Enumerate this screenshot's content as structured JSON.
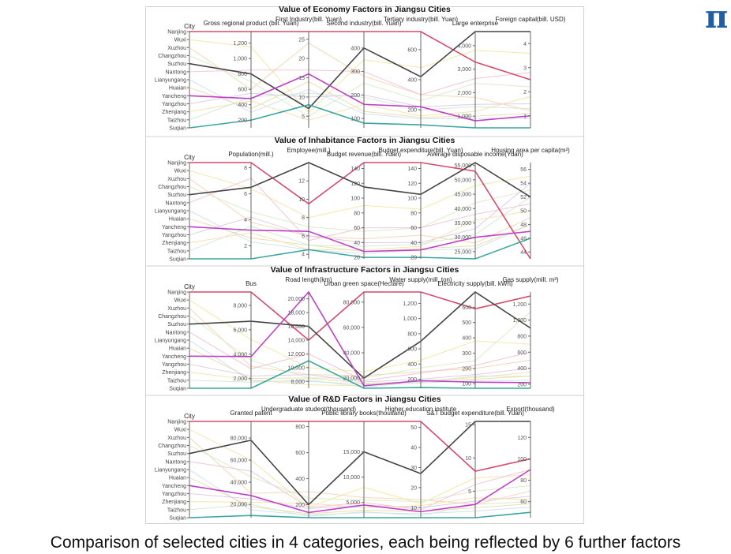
{
  "caption": "Comparison of selected cities in 4 categories, each being reflected by 6 further factors",
  "logo_text": "π",
  "colors": {
    "Nanjing": "#d64a6a",
    "Suzhou": "#444444",
    "Yancheng": "#c040c8",
    "Suqian": "#3aa6a0",
    "others": [
      "#f2e7a0",
      "#f5d3b0",
      "#d6ecc4",
      "#f0c0d0",
      "#c8e0f0",
      "#e8dca8",
      "#d8c8e8",
      "#f6e0a8",
      "#cfe8d0"
    ]
  },
  "chart_data": [
    {
      "type": "parallel_coordinates",
      "title": "Value of Economy Factors in Jiangsu Cities",
      "cities": [
        "Nanjing",
        "Wuxi",
        "Xuzhou",
        "Changzhou",
        "Suzhou",
        "Nantong",
        "Lianyungang",
        "Huaian",
        "Yancheng",
        "Yangzhou",
        "Zhenjiang",
        "Taizhou",
        "Suqian"
      ],
      "axes": [
        {
          "label": "Gross regional product (bill. Yuan)",
          "ticks": [
            "1,200",
            "1,000",
            "800",
            "600",
            "400",
            "200"
          ],
          "range": [
            100,
            1350
          ]
        },
        {
          "label": "First Industry(bill. Yuan)",
          "ticks": [
            "25",
            "20",
            "15",
            "10",
            "5"
          ],
          "range": [
            2,
            27
          ]
        },
        {
          "label": "Second industry(bill. Yuan)",
          "ticks": [
            "400",
            "300",
            "200",
            "100"
          ],
          "range": [
            60,
            470
          ]
        },
        {
          "label": "Tertiary industry(bill. Yuan)",
          "ticks": [
            "600",
            "400",
            "200"
          ],
          "range": [
            80,
            720
          ]
        },
        {
          "label": "Large enterprise",
          "ticks": [
            "4,000",
            "3,000",
            "2,000",
            "1,000"
          ],
          "range": [
            500,
            4600
          ]
        },
        {
          "label": "Foreign capital(bill. USD)",
          "ticks": [
            "4",
            "3",
            "2",
            "1"
          ],
          "range": [
            0.5,
            4.5
          ]
        }
      ],
      "highlight": [
        {
          "city": "Nanjing",
          "values": [
            1350,
            27,
            470,
            720,
            3300,
            2.5
          ]
        },
        {
          "city": "Suzhou",
          "values": [
            800,
            7,
            400,
            420,
            4600,
            4.5
          ]
        },
        {
          "city": "Yancheng",
          "values": [
            480,
            16,
            160,
            220,
            800,
            1.0
          ]
        },
        {
          "city": "Suqian",
          "values": [
            200,
            8,
            80,
            100,
            500,
            0.5
          ]
        }
      ],
      "background": [
        {
          "city": "Wuxi",
          "values": [
            1150,
            6,
            350,
            480,
            3800,
            3.6
          ]
        },
        {
          "city": "Xuzhou",
          "values": [
            600,
            24,
            280,
            300,
            1800,
            1.2
          ]
        },
        {
          "city": "Changzhou",
          "values": [
            700,
            5,
            250,
            260,
            2400,
            2.2
          ]
        },
        {
          "city": "Nantong",
          "values": [
            850,
            17,
            300,
            300,
            2600,
            2.8
          ]
        },
        {
          "city": "Lianyungang",
          "values": [
            300,
            12,
            120,
            140,
            900,
            0.9
          ]
        },
        {
          "city": "Huaian",
          "values": [
            350,
            14,
            130,
            150,
            1000,
            1.1
          ]
        },
        {
          "city": "Yangzhou",
          "values": [
            550,
            10,
            200,
            220,
            1500,
            1.5
          ]
        },
        {
          "city": "Zhenjiang",
          "values": [
            450,
            4,
            160,
            160,
            1200,
            1.8
          ]
        },
        {
          "city": "Taizhou",
          "values": [
            500,
            11,
            190,
            200,
            1400,
            1.3
          ]
        }
      ]
    },
    {
      "type": "parallel_coordinates",
      "title": "Value of Inhabitance Factors in Jiangsu Cities",
      "cities": [
        "Nanjing",
        "Wuxi",
        "Xuzhou",
        "Changzhou",
        "Suzhou",
        "Nantong",
        "Lianyungang",
        "Huaian",
        "Yancheng",
        "Yangzhou",
        "Zhenjiang",
        "Taizhou",
        "Suqian"
      ],
      "axes": [
        {
          "label": "Population(mill.)",
          "ticks": [
            "8",
            "6",
            "4",
            "2"
          ],
          "range": [
            1,
            8.4
          ]
        },
        {
          "label": "Employee(mill.)",
          "ticks": [
            "12",
            "10",
            "8",
            "6",
            "4"
          ],
          "range": [
            3.5,
            14
          ]
        },
        {
          "label": "Budget revenue(bill. Yuan)",
          "ticks": [
            "140",
            "120",
            "100",
            "80",
            "60",
            "40",
            "20"
          ],
          "range": [
            18,
            148
          ]
        },
        {
          "label": "Budget expenditure(bill. Yuan)",
          "ticks": [
            "140",
            "120",
            "100",
            "80",
            "60",
            "40",
            "20"
          ],
          "range": [
            18,
            148
          ]
        },
        {
          "label": "Average disposable income(Yuan)",
          "ticks": [
            "55,000",
            "50,000",
            "45,000",
            "40,000",
            "35,000",
            "30,000",
            "25,000"
          ],
          "range": [
            22500,
            56000
          ]
        },
        {
          "label": "Housing area per capita(m²)",
          "ticks": [
            "56",
            "54",
            "52",
            "50",
            "48",
            "46",
            "44"
          ],
          "range": [
            43,
            57
          ]
        }
      ],
      "highlight": [
        {
          "city": "Nanjing",
          "values": [
            8.4,
            9.5,
            148,
            148,
            53000,
            43
          ]
        },
        {
          "city": "Suzhou",
          "values": [
            6.5,
            14,
            115,
            105,
            56000,
            52
          ]
        },
        {
          "city": "Yancheng",
          "values": [
            3.2,
            6.5,
            28,
            30,
            30000,
            47
          ]
        },
        {
          "city": "Suqian",
          "values": [
            1.0,
            4.5,
            20,
            20,
            22500,
            46
          ]
        }
      ],
      "background": [
        {
          "city": "Wuxi",
          "values": [
            6.4,
            8.0,
            90,
            85,
            48000,
            55
          ]
        },
        {
          "city": "Xuzhou",
          "values": [
            3.8,
            6.0,
            45,
            50,
            28000,
            49
          ]
        },
        {
          "city": "Changzhou",
          "values": [
            4.6,
            7.0,
            55,
            60,
            42000,
            53
          ]
        },
        {
          "city": "Nantong",
          "values": [
            7.2,
            5.5,
            60,
            60,
            38000,
            51
          ]
        },
        {
          "city": "Lianyungang",
          "values": [
            2.3,
            4.5,
            25,
            30,
            26000,
            48
          ]
        },
        {
          "city": "Huaian",
          "values": [
            2.6,
            5.0,
            28,
            32,
            27000,
            48
          ]
        },
        {
          "city": "Yangzhou",
          "values": [
            4.2,
            6.0,
            40,
            40,
            33000,
            54
          ]
        },
        {
          "city": "Zhenjiang",
          "values": [
            3.0,
            4.5,
            30,
            35,
            36000,
            50
          ]
        },
        {
          "city": "Taizhou",
          "values": [
            3.5,
            5.0,
            35,
            38,
            31000,
            52
          ]
        }
      ]
    },
    {
      "type": "parallel_coordinates",
      "title": "Value of Infrastructure Factors in Jiangsu Cities",
      "cities": [
        "Nanjing",
        "Wuxi",
        "Xuzhou",
        "Changzhou",
        "Suzhou",
        "Nantong",
        "Lianyungang",
        "Huaian",
        "Yancheng",
        "Yangzhou",
        "Zhenjiang",
        "Taizhou",
        "Suqian"
      ],
      "axes": [
        {
          "label": "Bus",
          "ticks": [
            "8,000",
            "6,000",
            "4,000",
            "2,000"
          ],
          "range": [
            1200,
            9100
          ]
        },
        {
          "label": "Road length(km)",
          "ticks": [
            "20,000",
            "18,000",
            "16,000",
            "14,000",
            "12,000",
            "10,000",
            "8,000"
          ],
          "range": [
            7000,
            21000
          ]
        },
        {
          "label": "Urban green space(Hectare)",
          "ticks": [
            "80,000",
            "60,000",
            "40,000",
            "20,000"
          ],
          "range": [
            12000,
            88000
          ]
        },
        {
          "label": "Water supply(mill. ton)",
          "ticks": [
            "1,200",
            "1,000",
            "800",
            "600",
            "400",
            "200"
          ],
          "range": [
            80,
            1350
          ]
        },
        {
          "label": "Electricity supply(bill. kWh)",
          "ticks": [
            "600",
            "500",
            "400",
            "300",
            "200",
            "100"
          ],
          "range": [
            70,
            700
          ]
        },
        {
          "label": "Gas supply(mill. m³)",
          "ticks": [
            "1,200",
            "1,000",
            "800",
            "600",
            "400",
            "200"
          ],
          "range": [
            150,
            1350
          ]
        }
      ],
      "highlight": [
        {
          "city": "Nanjing",
          "values": [
            9100,
            14000,
            88000,
            1350,
            590,
            1300
          ]
        },
        {
          "city": "Suzhou",
          "values": [
            6700,
            16000,
            20000,
            700,
            700,
            900
          ]
        },
        {
          "city": "Yancheng",
          "values": [
            3800,
            21000,
            14000,
            180,
            110,
            220
          ]
        },
        {
          "city": "Suqian",
          "values": [
            1200,
            11000,
            12000,
            90,
            70,
            150
          ]
        }
      ],
      "background": [
        {
          "city": "Wuxi",
          "values": [
            5200,
            10000,
            25000,
            450,
            380,
            700
          ]
        },
        {
          "city": "Xuzhou",
          "values": [
            3000,
            9000,
            22000,
            300,
            200,
            500
          ]
        },
        {
          "city": "Changzhou",
          "values": [
            3500,
            8500,
            20000,
            350,
            250,
            1100
          ]
        },
        {
          "city": "Nantong",
          "values": [
            2800,
            12000,
            18000,
            280,
            220,
            600
          ]
        },
        {
          "city": "Lianyungang",
          "values": [
            1800,
            8000,
            15000,
            150,
            120,
            250
          ]
        },
        {
          "city": "Huaian",
          "values": [
            2000,
            8500,
            16000,
            170,
            130,
            300
          ]
        },
        {
          "city": "Yangzhou",
          "values": [
            2200,
            9000,
            17000,
            200,
            160,
            400
          ]
        },
        {
          "city": "Zhenjiang",
          "values": [
            1900,
            7500,
            14000,
            180,
            140,
            350
          ]
        },
        {
          "city": "Taizhou",
          "values": [
            1700,
            8200,
            13000,
            160,
            150,
            300
          ]
        }
      ]
    },
    {
      "type": "parallel_coordinates",
      "title": "Value of R&D Factors in Jiangsu Cities",
      "cities": [
        "Nanjing",
        "Wuxi",
        "Xuzhou",
        "Changzhou",
        "Suzhou",
        "Nantong",
        "Lianyungang",
        "Huaian",
        "Yancheng",
        "Yangzhou",
        "Zhenjiang",
        "Taizhou",
        "Suqian"
      ],
      "axes": [
        {
          "label": "Granted patent",
          "ticks": [
            "80,000",
            "60,000",
            "40,000",
            "20,000"
          ],
          "range": [
            8000,
            95000
          ]
        },
        {
          "label": "Undergraduate student(thousand)",
          "ticks": [
            "800",
            "600",
            "400",
            "200"
          ],
          "range": [
            100,
            840
          ]
        },
        {
          "label": "Public library books(thousand)",
          "ticks": [
            "15,000",
            "10,000",
            "5,000"
          ],
          "range": [
            2000,
            21000
          ]
        },
        {
          "label": "Higher education institute",
          "ticks": [
            "50",
            "40",
            "30",
            "20",
            "10"
          ],
          "range": [
            5,
            53
          ]
        },
        {
          "label": "S&T budget expenditure(bill. Yuan)",
          "ticks": [
            "15",
            "10",
            "5"
          ],
          "range": [
            1,
            15.5
          ]
        },
        {
          "label": "Export(thousand)",
          "ticks": [
            "120",
            "100",
            "80",
            "60"
          ],
          "range": [
            45,
            135
          ]
        }
      ],
      "highlight": [
        {
          "city": "Nanjing",
          "values": [
            95000,
            840,
            21000,
            53,
            8,
            100
          ]
        },
        {
          "city": "Suzhou",
          "values": [
            78000,
            200,
            15000,
            27,
            15.5,
            135
          ]
        },
        {
          "city": "Yancheng",
          "values": [
            28000,
            140,
            4500,
            8,
            3,
            90
          ]
        },
        {
          "city": "Suqian",
          "values": [
            10000,
            100,
            2000,
            5,
            1,
            50
          ]
        }
      ],
      "background": [
        {
          "city": "Wuxi",
          "values": [
            60000,
            180,
            8000,
            12,
            7,
            85
          ]
        },
        {
          "city": "Xuzhou",
          "values": [
            30000,
            300,
            6000,
            14,
            3,
            70
          ]
        },
        {
          "city": "Changzhou",
          "values": [
            45000,
            250,
            5500,
            13,
            5,
            75
          ]
        },
        {
          "city": "Nantong",
          "values": [
            50000,
            180,
            5000,
            9,
            6,
            90
          ]
        },
        {
          "city": "Lianyungang",
          "values": [
            15000,
            120,
            3000,
            7,
            2,
            55
          ]
        },
        {
          "city": "Huaian",
          "values": [
            18000,
            130,
            3500,
            8,
            2.5,
            58
          ]
        },
        {
          "city": "Yangzhou",
          "values": [
            25000,
            170,
            4500,
            10,
            3.5,
            65
          ]
        },
        {
          "city": "Zhenjiang",
          "values": [
            22000,
            210,
            4000,
            11,
            4,
            62
          ]
        },
        {
          "city": "Taizhou",
          "values": [
            20000,
            110,
            3200,
            6,
            3,
            60
          ]
        }
      ]
    }
  ]
}
